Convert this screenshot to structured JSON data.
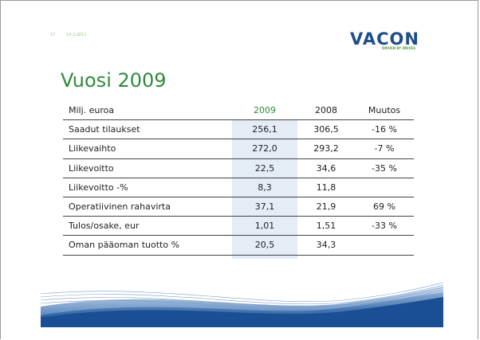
{
  "header": {
    "page_number": "17",
    "date": "14.3.2011"
  },
  "logo": {
    "name": "VACON",
    "tagline": "DRIVEN BY DRIVES"
  },
  "title": "Vuosi 2009",
  "table": {
    "columns": [
      "Milj. euroa",
      "2009",
      "2008",
      "Muutos"
    ],
    "rows": [
      [
        "Saadut tilaukset",
        "256,1",
        "306,5",
        "-16 %"
      ],
      [
        "Liikevaihto",
        "272,0",
        "293,2",
        "-7 %"
      ],
      [
        "Liikevoitto",
        "22,5",
        "34,6",
        "-35 %"
      ],
      [
        "Liikevoitto -%",
        "8,3",
        "11,8"
      ],
      [
        "Operatiivinen rahavirta",
        "37,1",
        "21,9",
        "69 %"
      ],
      [
        "Tulos/osake, eur",
        "1,01",
        "1,51",
        "-33 %"
      ],
      [
        "Oman pääoman tuotto %",
        "20,5",
        "34,3"
      ]
    ]
  }
}
